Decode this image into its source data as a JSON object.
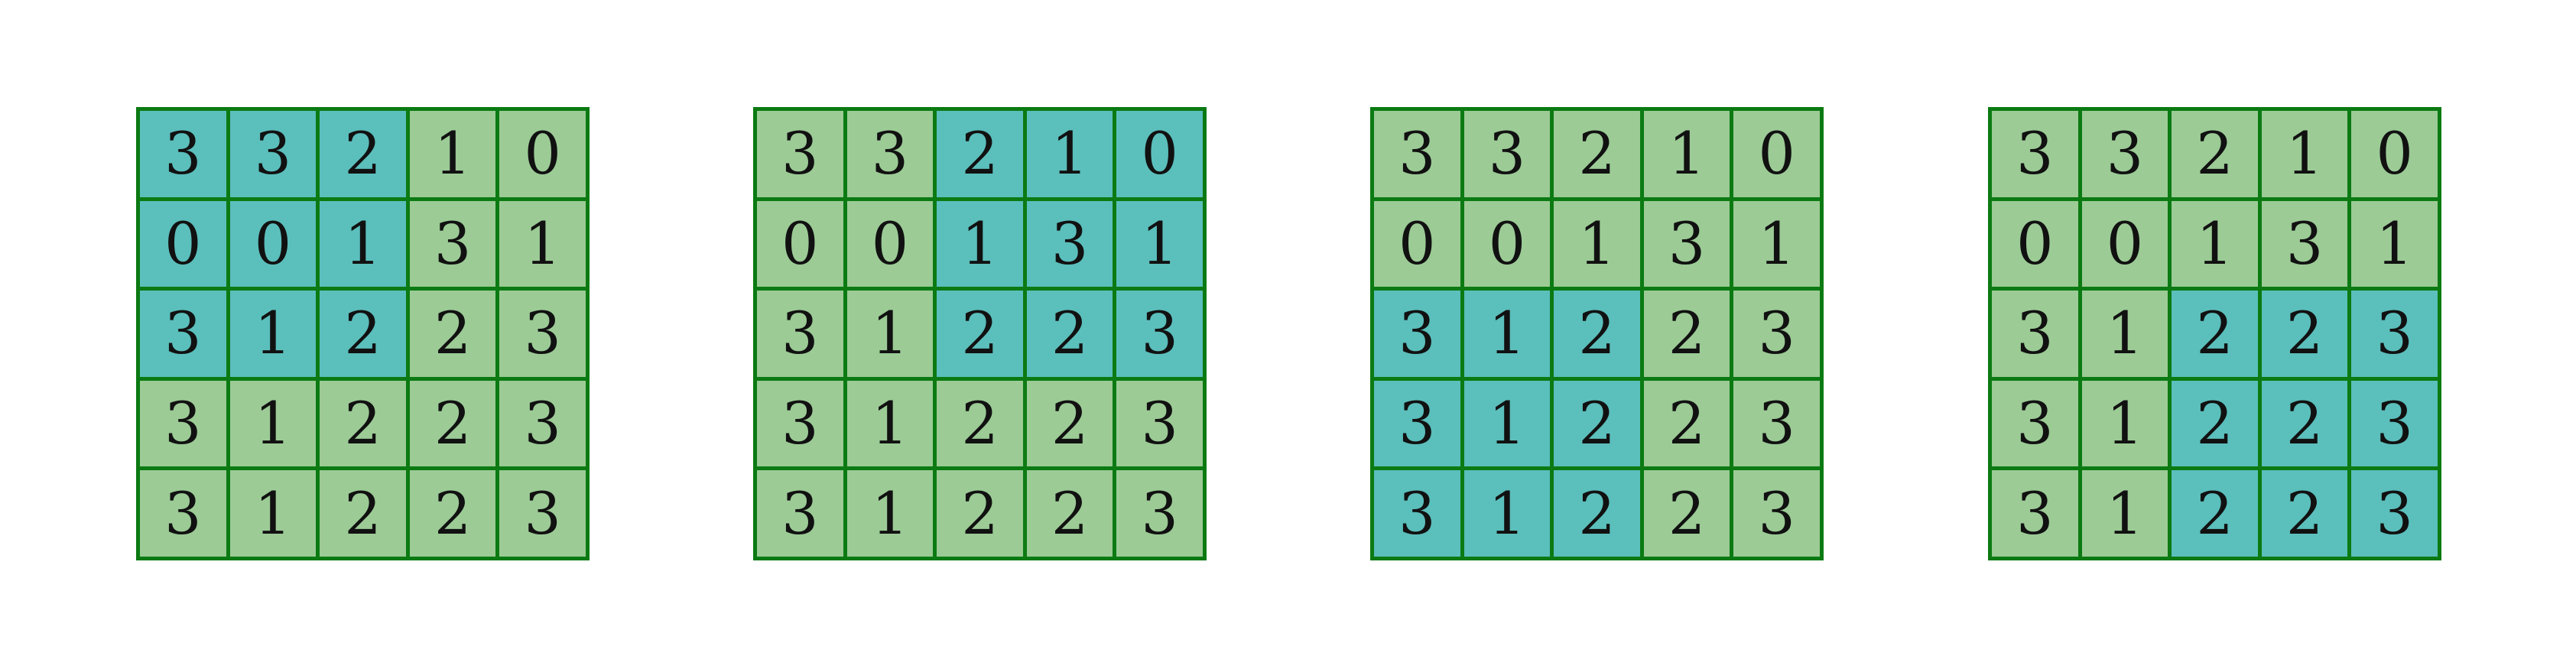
{
  "colors": {
    "cell_fill": "#9ccb96",
    "highlight_fill": "#5bbfbc",
    "grid_lines": "#0b7a12",
    "text": "#111111"
  },
  "grids": [
    {
      "values": [
        [
          3,
          3,
          2,
          1,
          0
        ],
        [
          0,
          0,
          1,
          3,
          1
        ],
        [
          3,
          1,
          2,
          2,
          3
        ],
        [
          3,
          1,
          2,
          2,
          3
        ],
        [
          3,
          1,
          2,
          2,
          3
        ]
      ],
      "highlight": {
        "rows": [
          0,
          2
        ],
        "cols": [
          0,
          2
        ]
      }
    },
    {
      "values": [
        [
          3,
          3,
          2,
          1,
          0
        ],
        [
          0,
          0,
          1,
          3,
          1
        ],
        [
          3,
          1,
          2,
          2,
          3
        ],
        [
          3,
          1,
          2,
          2,
          3
        ],
        [
          3,
          1,
          2,
          2,
          3
        ]
      ],
      "highlight": {
        "rows": [
          0,
          2
        ],
        "cols": [
          2,
          4
        ]
      }
    },
    {
      "values": [
        [
          3,
          3,
          2,
          1,
          0
        ],
        [
          0,
          0,
          1,
          3,
          1
        ],
        [
          3,
          1,
          2,
          2,
          3
        ],
        [
          3,
          1,
          2,
          2,
          3
        ],
        [
          3,
          1,
          2,
          2,
          3
        ]
      ],
      "highlight": {
        "rows": [
          2,
          4
        ],
        "cols": [
          0,
          2
        ]
      }
    },
    {
      "values": [
        [
          3,
          3,
          2,
          1,
          0
        ],
        [
          0,
          0,
          1,
          3,
          1
        ],
        [
          3,
          1,
          2,
          2,
          3
        ],
        [
          3,
          1,
          2,
          2,
          3
        ],
        [
          3,
          1,
          2,
          2,
          3
        ]
      ],
      "highlight": {
        "rows": [
          2,
          4
        ],
        "cols": [
          2,
          4
        ]
      }
    }
  ]
}
